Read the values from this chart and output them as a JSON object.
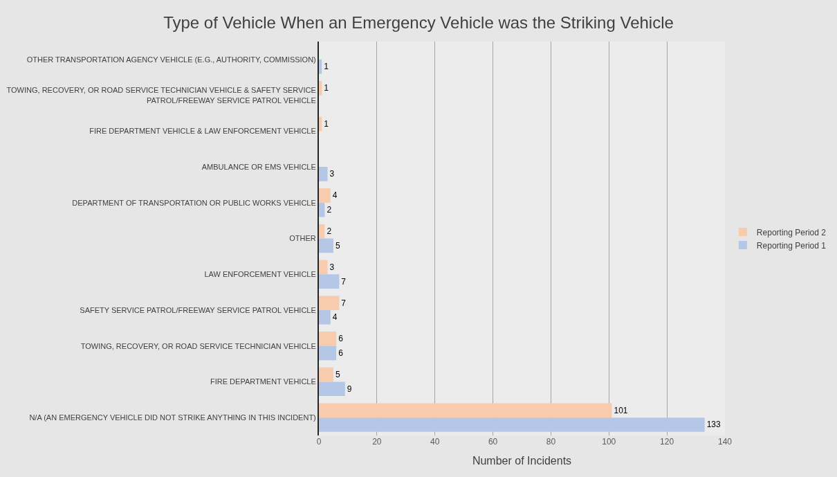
{
  "chart_data": {
    "type": "bar",
    "orientation": "horizontal",
    "title": "Type of Vehicle When an Emergency Vehicle was the Striking Vehicle",
    "xlabel": "Number of Incidents",
    "categories": [
      "OTHER TRANSPORTATION AGENCY VEHICLE (E.G., AUTHORITY, COMMISSION)",
      "TOWING, RECOVERY, OR ROAD SERVICE TECHNICIAN VEHICLE & SAFETY SERVICE PATROL/FREEWAY SERVICE PATROL VEHICLE",
      "FIRE DEPARTMENT VEHICLE & LAW ENFORCEMENT VEHICLE",
      "AMBULANCE OR EMS VEHICLE",
      "DEPARTMENT OF TRANSPORTATION OR PUBLIC WORKS VEHICLE",
      "OTHER",
      "LAW ENFORCEMENT VEHICLE",
      "SAFETY SERVICE PATROL/FREEWAY SERVICE PATROL VEHICLE",
      "TOWING, RECOVERY, OR ROAD SERVICE TECHNICIAN VEHICLE",
      "FIRE DEPARTMENT VEHICLE",
      "N/A (AN EMERGENCY VEHICLE DID NOT STRIKE ANYTHING IN THIS INCIDENT)"
    ],
    "series": [
      {
        "name": "Reporting Period 2",
        "color": "#f8cbad",
        "values": [
          null,
          1,
          1,
          null,
          4,
          2,
          3,
          7,
          6,
          5,
          101
        ]
      },
      {
        "name": "Reporting Period 1",
        "color": "#b4c7e7",
        "values": [
          1,
          null,
          null,
          3,
          2,
          5,
          7,
          4,
          6,
          9,
          133
        ]
      }
    ],
    "xlim": [
      0,
      140
    ],
    "xticks": [
      0,
      20,
      40,
      60,
      80,
      100,
      120,
      140
    ],
    "grid": "x",
    "legend": "right",
    "data_labels": true
  }
}
